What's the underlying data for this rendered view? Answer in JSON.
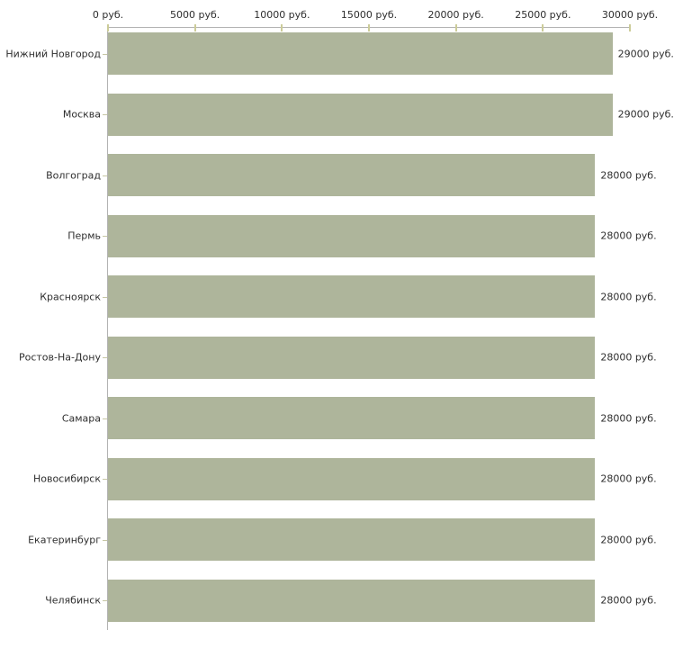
{
  "chart_data": {
    "type": "bar",
    "orientation": "horizontal",
    "title": "",
    "xlabel": "",
    "ylabel": "",
    "categories": [
      "Нижний Новгород",
      "Москва",
      "Волгоград",
      "Пермь",
      "Красноярск",
      "Ростов-На-Дону",
      "Самара",
      "Новосибирск",
      "Екатеринбург",
      "Челябинск"
    ],
    "values": [
      29000,
      29000,
      28000,
      28000,
      28000,
      28000,
      28000,
      28000,
      28000,
      28000
    ],
    "value_labels": [
      "29000 руб.",
      "29000 руб.",
      "28000 руб.",
      "28000 руб.",
      "28000 руб.",
      "28000 руб.",
      "28000 руб.",
      "28000 руб.",
      "28000 руб.",
      "28000 руб."
    ],
    "x_ticks": [
      0,
      5000,
      10000,
      15000,
      20000,
      25000,
      30000
    ],
    "x_tick_labels": [
      "0 руб.",
      "5000 руб.",
      "10000 руб.",
      "15000 руб.",
      "20000 руб.",
      "25000 руб.",
      "30000 руб."
    ],
    "xlim": [
      0,
      30000
    ],
    "grid": false,
    "legend": false,
    "colors": {
      "bar": "#aeb59b",
      "axis_line": "#b3b3b3",
      "axis_tick": "#cccc99",
      "row_tick": "#c6c6a3",
      "text": "#2e2e2e",
      "background": "#ffffff"
    }
  }
}
